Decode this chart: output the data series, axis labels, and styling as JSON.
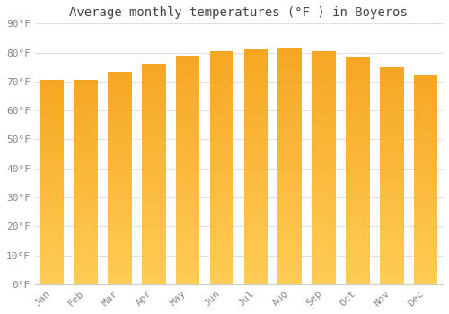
{
  "title": "Average monthly temperatures (°F ) in Boyeros",
  "months": [
    "Jan",
    "Feb",
    "Mar",
    "Apr",
    "May",
    "Jun",
    "Jul",
    "Aug",
    "Sep",
    "Oct",
    "Nov",
    "Dec"
  ],
  "values": [
    70.5,
    70.5,
    73.5,
    76,
    79,
    80.5,
    81,
    81.5,
    80.5,
    78.5,
    75,
    72
  ],
  "bar_color": "#F5A623",
  "bar_color_top": "#F5A623",
  "bar_color_bottom": "#FFCC55",
  "background_color": "#FFFFFF",
  "grid_color": "#E0E0E0",
  "text_color": "#888888",
  "title_color": "#444444",
  "ylim": [
    0,
    90
  ],
  "yticks": [
    0,
    10,
    20,
    30,
    40,
    50,
    60,
    70,
    80,
    90
  ],
  "ylabel_format": "°F",
  "tick_fontsize": 8,
  "title_fontsize": 10
}
